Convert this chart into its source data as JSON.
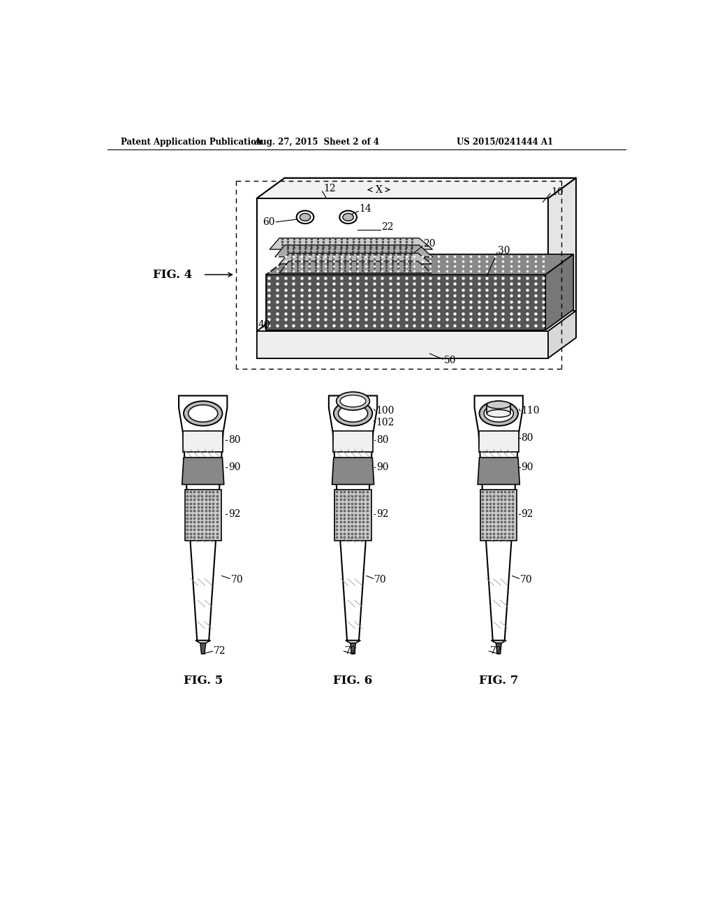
{
  "bg_color": "#ffffff",
  "header_left": "Patent Application Publication",
  "header_center": "Aug. 27, 2015  Sheet 2 of 4",
  "header_right": "US 2015/0241444 A1",
  "fig4_label": "FIG. 4",
  "fig5_label": "FIG. 5",
  "fig6_label": "FIG. 6",
  "fig7_label": "FIG. 7",
  "lc": "#000000",
  "tc": "#000000"
}
